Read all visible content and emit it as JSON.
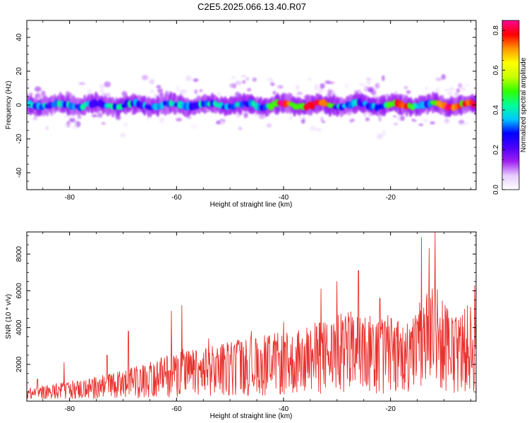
{
  "title": "C2E5.2025.066.13.40.R07",
  "chart_data": [
    {
      "type": "heatmap",
      "xlabel": "Height of straight line (km)",
      "ylabel": "Frequency (Hz)",
      "xlim": [
        -88,
        -4
      ],
      "ylim": [
        -50,
        50
      ],
      "xticks": [
        -80,
        -60,
        -40,
        -20
      ],
      "yticks": [
        -40,
        -20,
        0,
        20,
        40
      ],
      "colorbar": {
        "label": "Normalized spectral amplitude",
        "range": [
          0.0,
          0.85
        ],
        "ticks": [
          0.0,
          0.2,
          0.4,
          0.6,
          0.8
        ],
        "colors": [
          "#ffffff",
          "#e6ccff",
          "#a020f0",
          "#4b00ff",
          "#0000ff",
          "#00c8ff",
          "#00ff96",
          "#32ff00",
          "#c8ff00",
          "#ffff00",
          "#ff9600",
          "#ff0000",
          "#ff0096"
        ]
      },
      "ridge": {
        "center_frequency_hz": 0,
        "half_width_hz": 4,
        "hotspots_km": [
          -40,
          -35,
          -33,
          -18,
          -10,
          -8,
          -5
        ],
        "scattered_emission_extent_hz": [
          -20,
          20
        ]
      }
    },
    {
      "type": "line",
      "xlabel": "Height of straight line (km)",
      "ylabel": "SNR (10 * v/v)",
      "xlim": [
        -88,
        -4
      ],
      "ylim": [
        0,
        9200
      ],
      "xticks": [
        -80,
        -60,
        -40,
        -20
      ],
      "yticks": [
        2000,
        4000,
        6000,
        8000
      ],
      "color": "#e8302c",
      "envelope": {
        "x": [
          -88,
          -80,
          -72,
          -68,
          -64,
          -60,
          -56,
          -50,
          -46,
          -42,
          -38,
          -34,
          -30,
          -26,
          -22,
          -18,
          -16,
          -14,
          -12,
          -10,
          -8,
          -6,
          -4
        ],
        "y": [
          700,
          1100,
          1500,
          1900,
          2200,
          2900,
          2800,
          3300,
          3500,
          3700,
          3800,
          4300,
          4700,
          5000,
          4900,
          4500,
          4700,
          6000,
          6800,
          5400,
          4800,
          5200,
          5400
        ]
      },
      "peaks": {
        "x": [
          -86,
          -81,
          -73,
          -69,
          -61,
          -59,
          -54,
          -46,
          -40,
          -33,
          -30,
          -26,
          -22,
          -14.2,
          -12.8,
          -11.7,
          -4.3
        ],
        "y": [
          1200,
          2100,
          2500,
          3800,
          4900,
          5200,
          3400,
          3800,
          4300,
          6100,
          6500,
          7100,
          5600,
          8900,
          8300,
          9200,
          6300
        ]
      }
    }
  ]
}
